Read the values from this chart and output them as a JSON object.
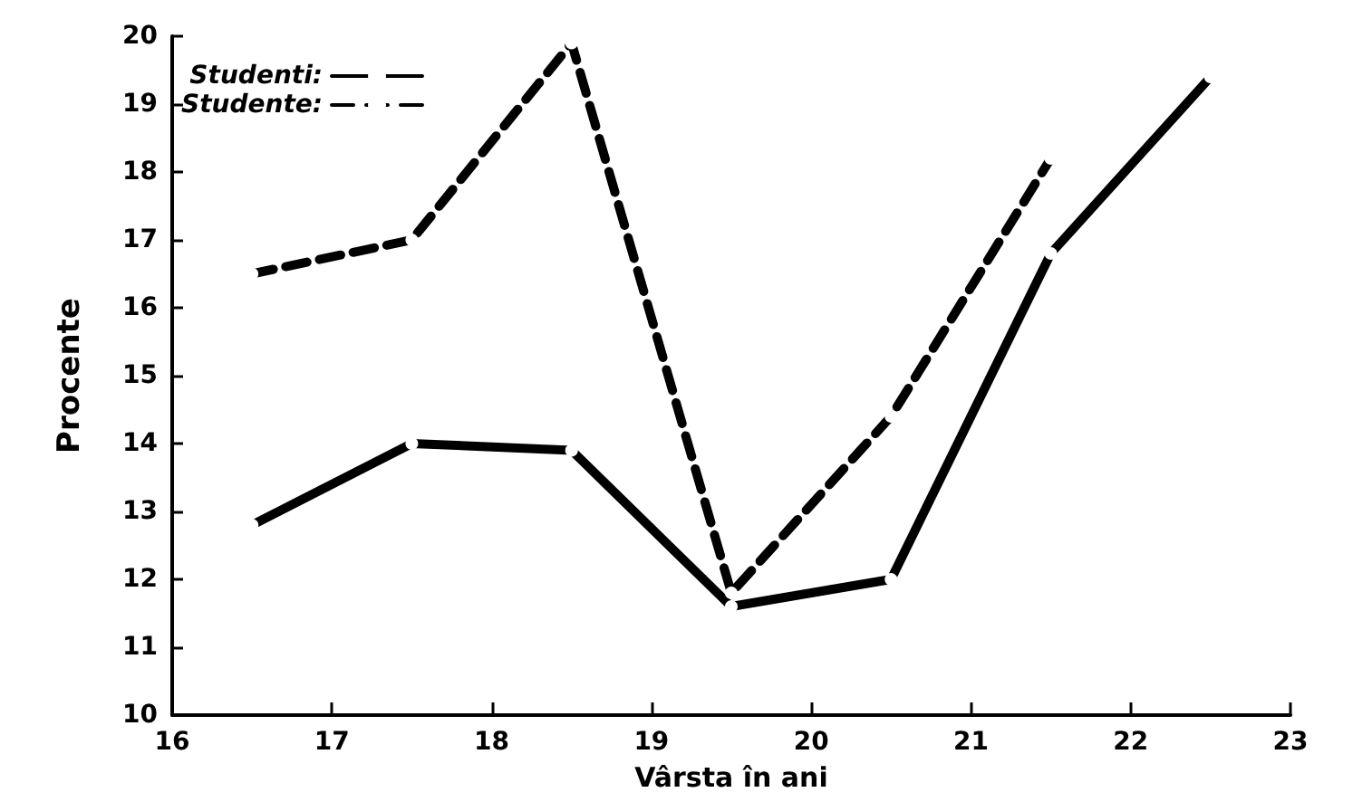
{
  "chart_data": {
    "type": "line",
    "xlabel": "Vârsta în ani",
    "ylabel": "Procente",
    "x": [
      16.5,
      17.5,
      18.5,
      19.5,
      20.5,
      21.5,
      22.5
    ],
    "series": [
      {
        "name": "Studenti:",
        "color": "#000000",
        "line_style": "solid",
        "values": [
          12.8,
          14.0,
          13.9,
          11.6,
          12.0,
          16.8,
          19.4
        ]
      },
      {
        "name": "Studente:",
        "color": "#000000",
        "line_style": "dashed",
        "values": [
          16.5,
          17.0,
          19.9,
          11.8,
          14.4,
          18.2,
          null
        ]
      }
    ],
    "xlim": [
      16,
      23
    ],
    "xticks": [
      16,
      17,
      18,
      19,
      20,
      21,
      22,
      23
    ],
    "ylim": [
      10,
      20
    ],
    "yticks": [
      10,
      11,
      12,
      13,
      14,
      15,
      16,
      17,
      18,
      19,
      20
    ],
    "grid": false,
    "legend": "top left",
    "marker": "circle"
  }
}
